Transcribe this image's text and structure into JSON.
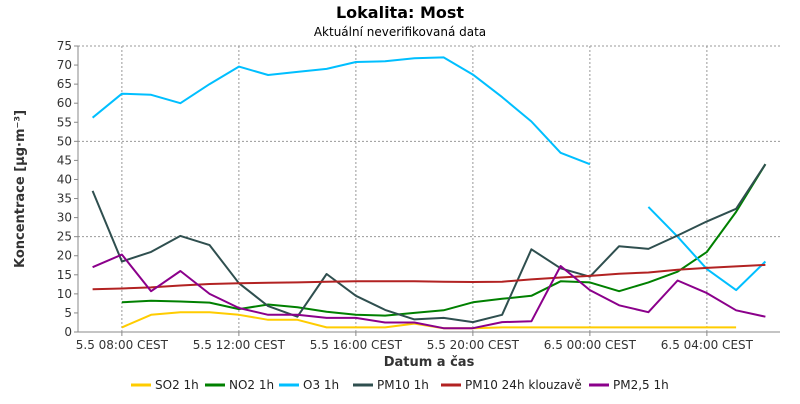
{
  "chart_data": {
    "type": "line",
    "title": "Lokalita: Most",
    "subtitle": "Aktuální neverifikovaná data",
    "xlabel": "Datum a čas",
    "ylabel": "Koncentrace [µg·m⁻³]",
    "ylim": [
      0,
      75
    ],
    "yticks": [
      0,
      5,
      10,
      15,
      20,
      25,
      30,
      35,
      40,
      45,
      50,
      55,
      60,
      65,
      70,
      75
    ],
    "x_unit": "hour offset from 5.5 08:00",
    "xlim": [
      -1.5,
      22.5
    ],
    "xticks": [
      {
        "x": 0,
        "label": "5.5 08:00 CEST"
      },
      {
        "x": 4,
        "label": "5.5 12:00 CEST"
      },
      {
        "x": 8,
        "label": "5.5 16:00 CEST"
      },
      {
        "x": 12,
        "label": "5.5 20:00 CEST"
      },
      {
        "x": 16,
        "label": "6.5 00:00 CEST"
      },
      {
        "x": 20,
        "label": "6.5 04:00 CEST"
      }
    ],
    "grid": true,
    "legend_position": "bottom",
    "series": [
      {
        "name": "SO2 1h",
        "color": "#ffcc00",
        "x": [
          0,
          1,
          2,
          3,
          4,
          5,
          6,
          7,
          8,
          9,
          10,
          11,
          12,
          13,
          14,
          15,
          16,
          17,
          18,
          19,
          20,
          21
        ],
        "values": [
          1.2,
          4.5,
          5.2,
          5.2,
          4.5,
          3.2,
          3.2,
          1.2,
          1.2,
          1.2,
          2.2,
          1.0,
          1.0,
          1.2,
          1.2,
          1.2,
          1.2,
          1.2,
          1.2,
          1.2,
          1.2,
          1.2
        ]
      },
      {
        "name": "NO2 1h",
        "color": "#008000",
        "x": [
          0,
          1,
          2,
          3,
          4,
          5,
          6,
          7,
          8,
          9,
          10,
          11,
          12,
          13,
          14,
          15,
          16,
          17,
          18,
          19,
          20,
          21,
          22
        ],
        "values": [
          7.8,
          8.2,
          8.0,
          7.7,
          6.0,
          7.2,
          6.5,
          5.3,
          4.5,
          4.3,
          5.0,
          5.7,
          7.8,
          8.7,
          9.5,
          13.3,
          13.0,
          10.7,
          13.0,
          15.8,
          21.0,
          31.5,
          44.0
        ]
      },
      {
        "name": "O3 1h",
        "color": "#00bfff",
        "x": [
          -1,
          0,
          1,
          2,
          3,
          4,
          5,
          6,
          7,
          8,
          9,
          10,
          11,
          12,
          13,
          14,
          15,
          16,
          null,
          18,
          19,
          20,
          21,
          22
        ],
        "values": [
          56.2,
          62.5,
          62.2,
          60.0,
          65.0,
          69.6,
          67.4,
          68.2,
          69.0,
          70.8,
          71.0,
          71.8,
          72.0,
          67.5,
          61.6,
          55.2,
          47.0,
          44.0,
          null,
          32.8,
          25.0,
          16.5,
          11.0,
          18.5
        ]
      },
      {
        "name": "PM10 1h",
        "color": "#2f4f4f",
        "x": [
          -1,
          0,
          1,
          2,
          3,
          4,
          5,
          6,
          7,
          8,
          9,
          10,
          11,
          12,
          13,
          14,
          15,
          16,
          17,
          18,
          19,
          20,
          21,
          22
        ],
        "values": [
          37.0,
          18.5,
          21.0,
          25.2,
          22.8,
          12.8,
          6.8,
          4.0,
          15.2,
          9.5,
          5.8,
          3.3,
          3.7,
          2.6,
          4.5,
          21.7,
          16.7,
          14.5,
          22.5,
          21.8,
          25.3,
          29.0,
          32.3,
          44.0
        ]
      },
      {
        "name": "PM10 24h klouzavě",
        "color": "#b22222",
        "x": [
          -1,
          0,
          1,
          2,
          3,
          4,
          5,
          6,
          7,
          8,
          9,
          10,
          11,
          12,
          13,
          14,
          15,
          16,
          17,
          18,
          19,
          20,
          21,
          22
        ],
        "values": [
          11.2,
          11.4,
          11.7,
          12.2,
          12.6,
          12.8,
          12.9,
          13.0,
          13.2,
          13.3,
          13.3,
          13.3,
          13.2,
          13.1,
          13.2,
          13.8,
          14.3,
          14.7,
          15.3,
          15.6,
          16.3,
          16.8,
          17.2,
          17.6
        ]
      },
      {
        "name": "PM2,5 1h",
        "color": "#8b008b",
        "x": [
          -1,
          0,
          1,
          2,
          3,
          4,
          5,
          6,
          7,
          8,
          9,
          10,
          11,
          12,
          13,
          14,
          15,
          16,
          17,
          18,
          19,
          20,
          21,
          22
        ],
        "values": [
          17.0,
          20.3,
          10.7,
          16.0,
          10.0,
          6.3,
          4.5,
          4.5,
          3.7,
          3.7,
          2.5,
          2.5,
          1.0,
          1.0,
          2.6,
          2.8,
          17.3,
          11.0,
          7.0,
          5.2,
          13.5,
          10.2,
          5.7,
          4.0
        ]
      }
    ]
  }
}
